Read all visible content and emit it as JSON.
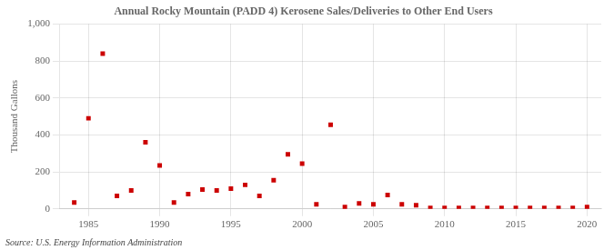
{
  "chart_data": {
    "type": "scatter",
    "title": "Annual Rocky Mountain (PADD 4) Kerosene Sales/Deliveries to Other End Users",
    "ylabel": "Thousand Gallons",
    "source": "Source: U.S. Energy Information Administration",
    "x": [
      1984,
      1985,
      1986,
      1987,
      1988,
      1989,
      1990,
      1991,
      1992,
      1993,
      1994,
      1995,
      1996,
      1997,
      1998,
      1999,
      2000,
      2001,
      2002,
      2003,
      2004,
      2005,
      2006,
      2007,
      2008,
      2009,
      2010,
      2011,
      2012,
      2013,
      2014,
      2015,
      2016,
      2017,
      2018,
      2019,
      2020
    ],
    "values": [
      35,
      490,
      840,
      70,
      100,
      360,
      235,
      35,
      80,
      105,
      100,
      110,
      130,
      70,
      155,
      295,
      245,
      25,
      455,
      10,
      30,
      25,
      75,
      25,
      20,
      5,
      5,
      5,
      5,
      5,
      5,
      5,
      5,
      5,
      5,
      5,
      10
    ],
    "color": "#cc0000",
    "marker": "square",
    "xlim": [
      1983,
      2021
    ],
    "xticks": [
      1985,
      1990,
      1995,
      2000,
      2005,
      2010,
      2015,
      2020
    ],
    "ylim": [
      0,
      1000
    ],
    "yticks": [
      0,
      200,
      400,
      600,
      800,
      {
        "value": 1000,
        "label": "1,000"
      }
    ],
    "grid": true
  }
}
